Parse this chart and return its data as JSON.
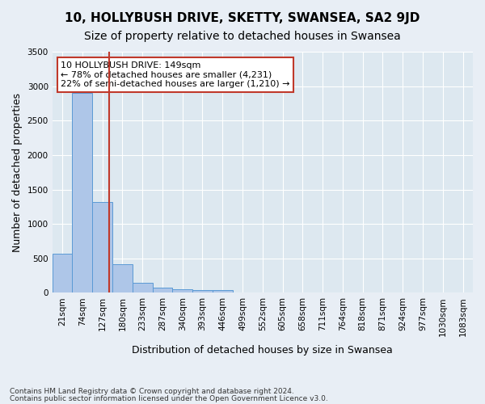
{
  "title1": "10, HOLLYBUSH DRIVE, SKETTY, SWANSEA, SA2 9JD",
  "title2": "Size of property relative to detached houses in Swansea",
  "xlabel": "Distribution of detached houses by size in Swansea",
  "ylabel": "Number of detached properties",
  "footer1": "Contains HM Land Registry data © Crown copyright and database right 2024.",
  "footer2": "Contains public sector information licensed under the Open Government Licence v3.0.",
  "bin_labels": [
    "21sqm",
    "74sqm",
    "127sqm",
    "180sqm",
    "233sqm",
    "287sqm",
    "340sqm",
    "393sqm",
    "446sqm",
    "499sqm",
    "552sqm",
    "605sqm",
    "658sqm",
    "711sqm",
    "764sqm",
    "818sqm",
    "871sqm",
    "924sqm",
    "977sqm",
    "1030sqm",
    "1083sqm"
  ],
  "bar_values": [
    570,
    2900,
    1320,
    410,
    150,
    80,
    55,
    45,
    35,
    0,
    0,
    0,
    0,
    0,
    0,
    0,
    0,
    0,
    0,
    0,
    0
  ],
  "bar_color": "#aec6e8",
  "bar_edge_color": "#5a9ad5",
  "vline_x": 2.35,
  "vline_color": "#c0392b",
  "annotation_text": "10 HOLLYBUSH DRIVE: 149sqm\n← 78% of detached houses are smaller (4,231)\n22% of semi-detached houses are larger (1,210) →",
  "annotation_box_color": "#c0392b",
  "ylim": [
    0,
    3500
  ],
  "yticks": [
    0,
    500,
    1000,
    1500,
    2000,
    2500,
    3000,
    3500
  ],
  "bg_color": "#dde8f0",
  "grid_color": "#ffffff",
  "title1_fontsize": 11,
  "title2_fontsize": 10,
  "xlabel_fontsize": 9,
  "ylabel_fontsize": 9,
  "tick_fontsize": 7.5,
  "annotation_fontsize": 8
}
